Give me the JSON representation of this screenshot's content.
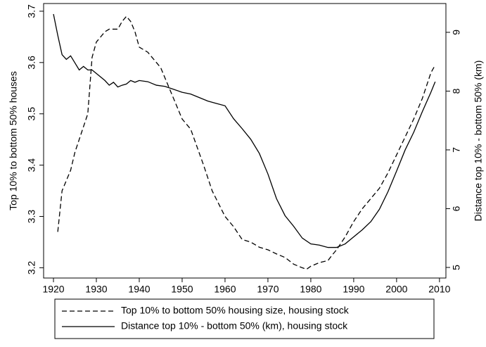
{
  "chart_data": {
    "type": "line",
    "xlabel": null,
    "ylabel": "Top 10% to bottom 50% houses",
    "y2label": "Distance top 10% - bottom 50% (km)",
    "xlim": [
      1917.7,
      2011.5
    ],
    "xticks": [
      1920,
      1930,
      1940,
      1950,
      1960,
      1970,
      1980,
      1990,
      2000,
      2010
    ],
    "ylim": [
      3.18,
      3.715
    ],
    "yticks": [
      3.2,
      3.3,
      3.4,
      3.5,
      3.6,
      3.7
    ],
    "y2lim": [
      4.82,
      9.49
    ],
    "y2ticks": [
      5,
      6,
      7,
      8,
      9
    ],
    "legend": "bottom",
    "series": [
      {
        "name": "Top 10% to bottom 50% housing size, housing stock",
        "color": "#000000",
        "dash": "dashed",
        "x": [
          1921,
          1922,
          1923,
          1924,
          1925,
          1926,
          1927,
          1928,
          1929,
          1930,
          1931,
          1932,
          1933,
          1934,
          1935,
          1936,
          1937,
          1938,
          1939,
          1940,
          1941,
          1942,
          1943,
          1944,
          1945,
          1946,
          1947,
          1948,
          1949,
          1950,
          1951,
          1952,
          1955,
          1957,
          1960,
          1962,
          1964,
          1966,
          1968,
          1970,
          1972,
          1974,
          1976,
          1978,
          1979,
          1980,
          1982,
          1984,
          1985,
          1986,
          1988,
          1990,
          1992,
          1994,
          1996,
          1998,
          2000,
          2002,
          2004,
          2006,
          2008,
          2009
        ],
        "values": [
          3.27,
          3.35,
          3.37,
          3.39,
          3.425,
          3.45,
          3.475,
          3.5,
          3.61,
          3.64,
          3.65,
          3.66,
          3.665,
          3.665,
          3.665,
          3.68,
          3.69,
          3.68,
          3.66,
          3.63,
          3.625,
          3.62,
          3.61,
          3.6,
          3.59,
          3.57,
          3.55,
          3.53,
          3.51,
          3.49,
          3.48,
          3.47,
          3.4,
          3.35,
          3.3,
          3.28,
          3.255,
          3.25,
          3.24,
          3.235,
          3.227,
          3.22,
          3.207,
          3.2,
          3.197,
          3.203,
          3.21,
          3.214,
          3.225,
          3.235,
          3.26,
          3.29,
          3.315,
          3.335,
          3.355,
          3.385,
          3.42,
          3.455,
          3.49,
          3.53,
          3.58,
          3.595
        ]
      },
      {
        "name": "Distance top 10% - bottom 50% (km), housing stock",
        "color": "#000000",
        "dash": "solid",
        "axis": "y2",
        "x": [
          1920,
          1921,
          1922,
          1923,
          1924,
          1925,
          1926,
          1927,
          1928,
          1929,
          1930,
          1932,
          1933,
          1934,
          1935,
          1936,
          1937,
          1938,
          1939,
          1940,
          1942,
          1944,
          1946,
          1948,
          1950,
          1952,
          1954,
          1956,
          1958,
          1960,
          1962,
          1964,
          1966,
          1968,
          1970,
          1972,
          1974,
          1976,
          1978,
          1980,
          1982,
          1984,
          1986,
          1988,
          1990,
          1992,
          1994,
          1996,
          1998,
          2000,
          2002,
          2004,
          2006,
          2008,
          2009
        ],
        "values": [
          9.31,
          8.95,
          8.62,
          8.54,
          8.6,
          8.48,
          8.36,
          8.42,
          8.36,
          8.36,
          8.3,
          8.18,
          8.1,
          8.15,
          8.07,
          8.1,
          8.12,
          8.18,
          8.15,
          8.18,
          8.16,
          8.1,
          8.08,
          8.03,
          7.98,
          7.95,
          7.89,
          7.83,
          7.79,
          7.75,
          7.53,
          7.36,
          7.18,
          6.94,
          6.59,
          6.17,
          5.88,
          5.7,
          5.5,
          5.4,
          5.38,
          5.34,
          5.34,
          5.4,
          5.52,
          5.64,
          5.78,
          5.99,
          6.29,
          6.64,
          7.0,
          7.3,
          7.65,
          7.98,
          8.16
        ]
      }
    ]
  }
}
